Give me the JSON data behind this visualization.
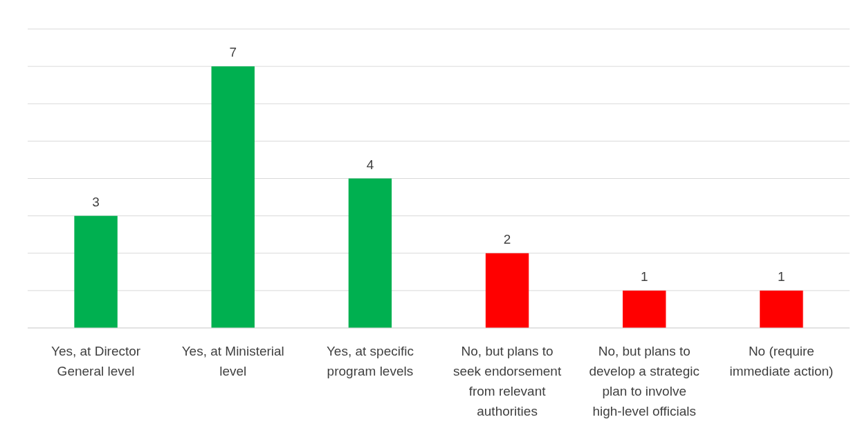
{
  "chart_data": {
    "type": "bar",
    "categories": [
      "Yes, at Director General level",
      "Yes, at Ministerial level",
      "Yes, at specific program levels",
      "No, but plans to seek endorsement from relevant authorities",
      "No, but plans to develop a strategic plan to involve high-level officials",
      "No (require immediate action)"
    ],
    "values": [
      3,
      7,
      4,
      2,
      1,
      1
    ],
    "colors": [
      "#00b050",
      "#00b050",
      "#00b050",
      "#ff0000",
      "#ff0000",
      "#ff0000"
    ],
    "ylim": [
      0,
      8
    ],
    "yticks": [
      {
        "value": 0,
        "label": null
      },
      {
        "value": 1,
        "label": null
      },
      {
        "value": 2,
        "label": null
      },
      {
        "value": 3,
        "label": null
      },
      {
        "value": 4,
        "label": null
      },
      {
        "value": 5,
        "label": null
      },
      {
        "value": 6,
        "label": null
      },
      {
        "value": 7,
        "label": null
      },
      {
        "value": 8,
        "label": null
      }
    ],
    "grid": "y",
    "tick_labels": "x",
    "data_labels": true
  }
}
